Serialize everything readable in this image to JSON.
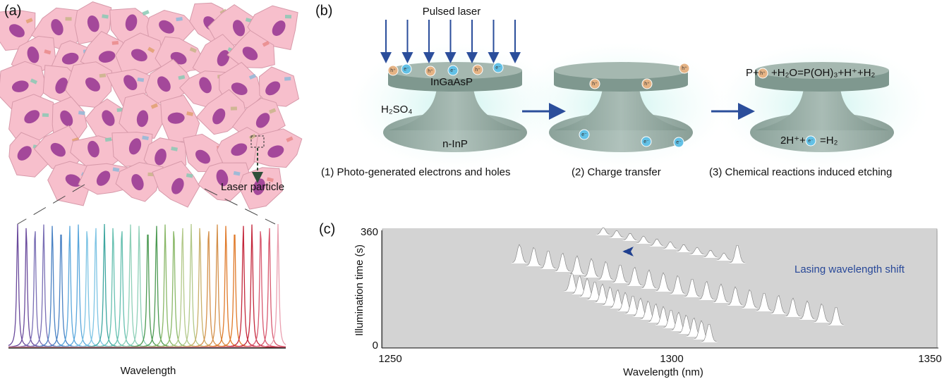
{
  "panel_a": {
    "label": "(a)",
    "callout": "Laser particle",
    "x_axis_label": "Wavelength"
  },
  "panel_b": {
    "label": "(b)",
    "pulsed_laser": "Pulsed laser",
    "layer": "InGaAsP",
    "electrolyte": "H₂SO₄",
    "substrate": "n-InP",
    "hole": "h⁺",
    "electron": "e⁻",
    "reaction_top_left": "P+",
    "reaction_top_right": "+H₂O=P(OH)₃+H⁺+H₂",
    "reaction_bottom_left": "2H⁺+",
    "reaction_bottom_right": "=H₂",
    "steps": [
      "(1) Photo-generated electrons and holes",
      "(2) Charge transfer",
      "(3) Chemical reactions induced etching"
    ]
  },
  "panel_c": {
    "label": "(c)",
    "y_axis_label": "Illumination time (s)",
    "x_axis_label": "Wavelength (nm)",
    "annotation": "Lasing wavelength shift",
    "xticks": [
      "1250",
      "1300",
      "1350"
    ],
    "yticks": [
      "0",
      "360"
    ]
  }
}
